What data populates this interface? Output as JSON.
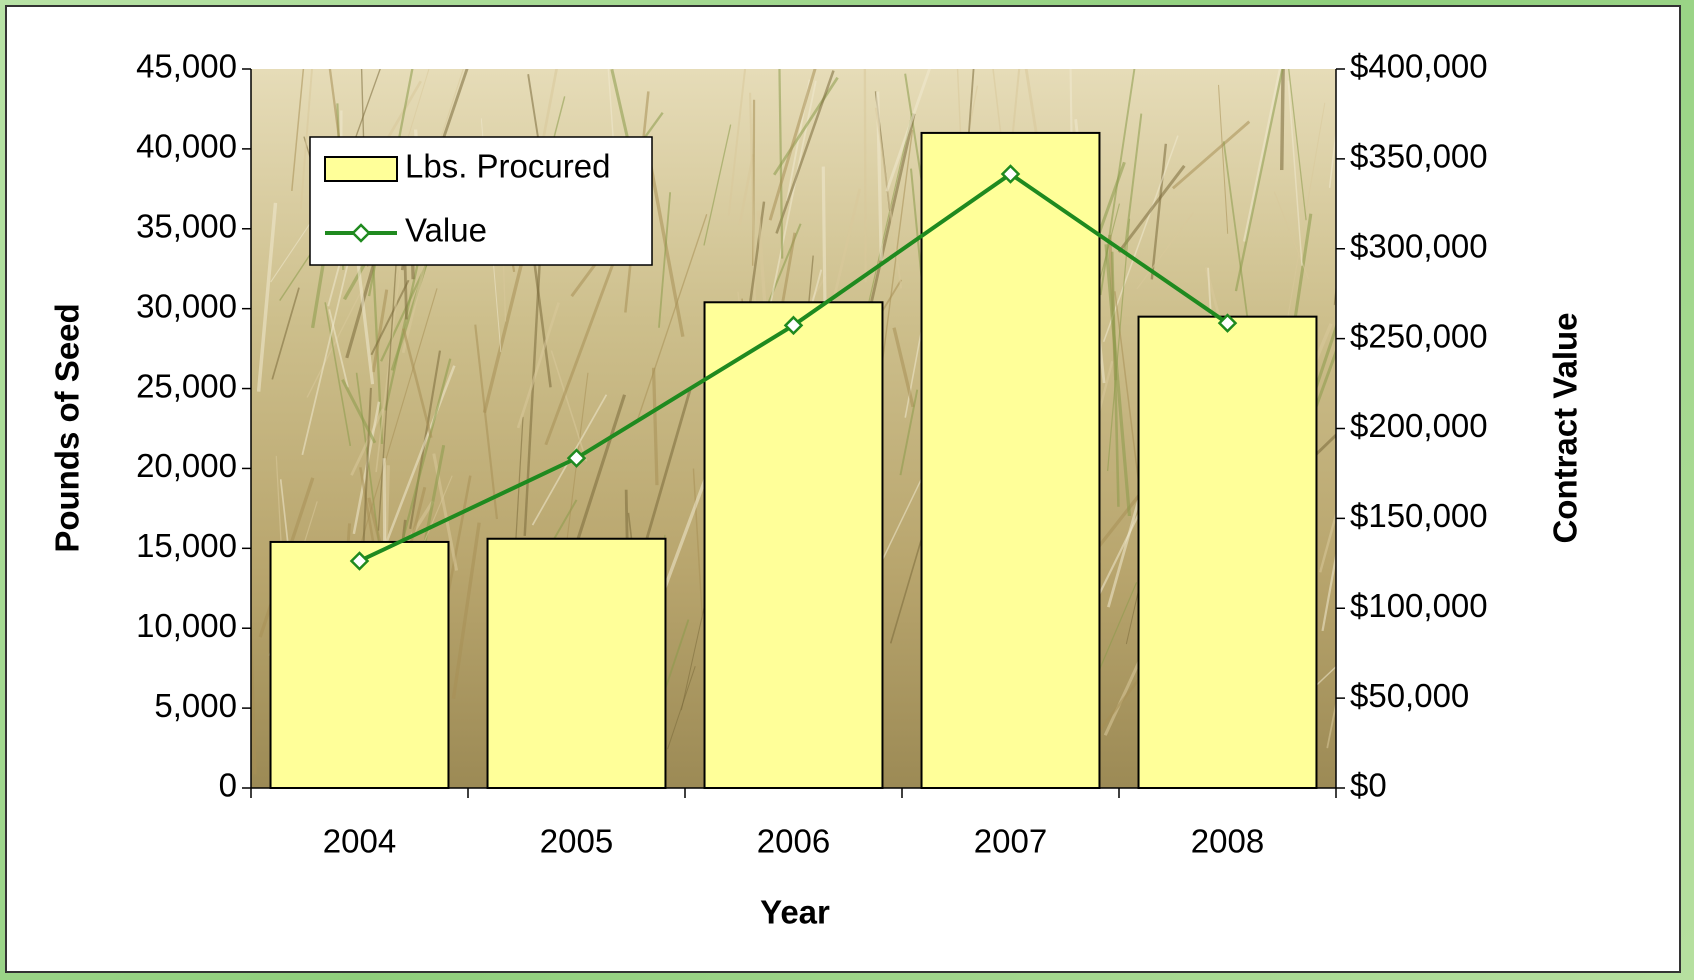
{
  "chart_data": {
    "type": "bar",
    "xlabel": "Year",
    "ylabel": "Pounds of Seed",
    "y2label": "Contract Value",
    "categories": [
      "2004",
      "2005",
      "2006",
      "2007",
      "2008"
    ],
    "series": [
      {
        "name": "Lbs. Procured",
        "type": "bar",
        "color": "#ffff99",
        "values": [
          15400,
          15600,
          30400,
          41000,
          29500
        ]
      },
      {
        "name": "Value",
        "type": "line",
        "axis": "y2",
        "color": "#1f8a1f",
        "values": [
          126300,
          183500,
          257400,
          341600,
          258600
        ]
      }
    ],
    "ylim": [
      0,
      45000
    ],
    "yticks": [
      0,
      {
        "value": 5000,
        "label": "5,000"
      },
      {
        "value": 10000,
        "label": "10,000"
      },
      {
        "value": 15000,
        "label": "15,000"
      },
      {
        "value": 20000,
        "label": "20,000"
      },
      {
        "value": 25000,
        "label": "25,000"
      },
      {
        "value": 30000,
        "label": "30,000"
      },
      {
        "value": 35000,
        "label": "35,000"
      },
      {
        "value": 40000,
        "label": "40,000"
      },
      {
        "value": 45000,
        "label": "45,000"
      }
    ],
    "y2lim": [
      0,
      400000
    ],
    "y2ticks": [
      {
        "value": 0,
        "label": "$0"
      },
      {
        "value": 50000,
        "label": "$50,000"
      },
      {
        "value": 100000,
        "label": "$100,000"
      },
      {
        "value": 150000,
        "label": "$150,000"
      },
      {
        "value": 200000,
        "label": "$200,000"
      },
      {
        "value": 250000,
        "label": "$250,000"
      },
      {
        "value": 300000,
        "label": "$300,000"
      },
      {
        "value": 350000,
        "label": "$350,000"
      },
      {
        "value": 400000,
        "label": "$400,000"
      }
    ],
    "legend": "upper left",
    "grid": false
  }
}
